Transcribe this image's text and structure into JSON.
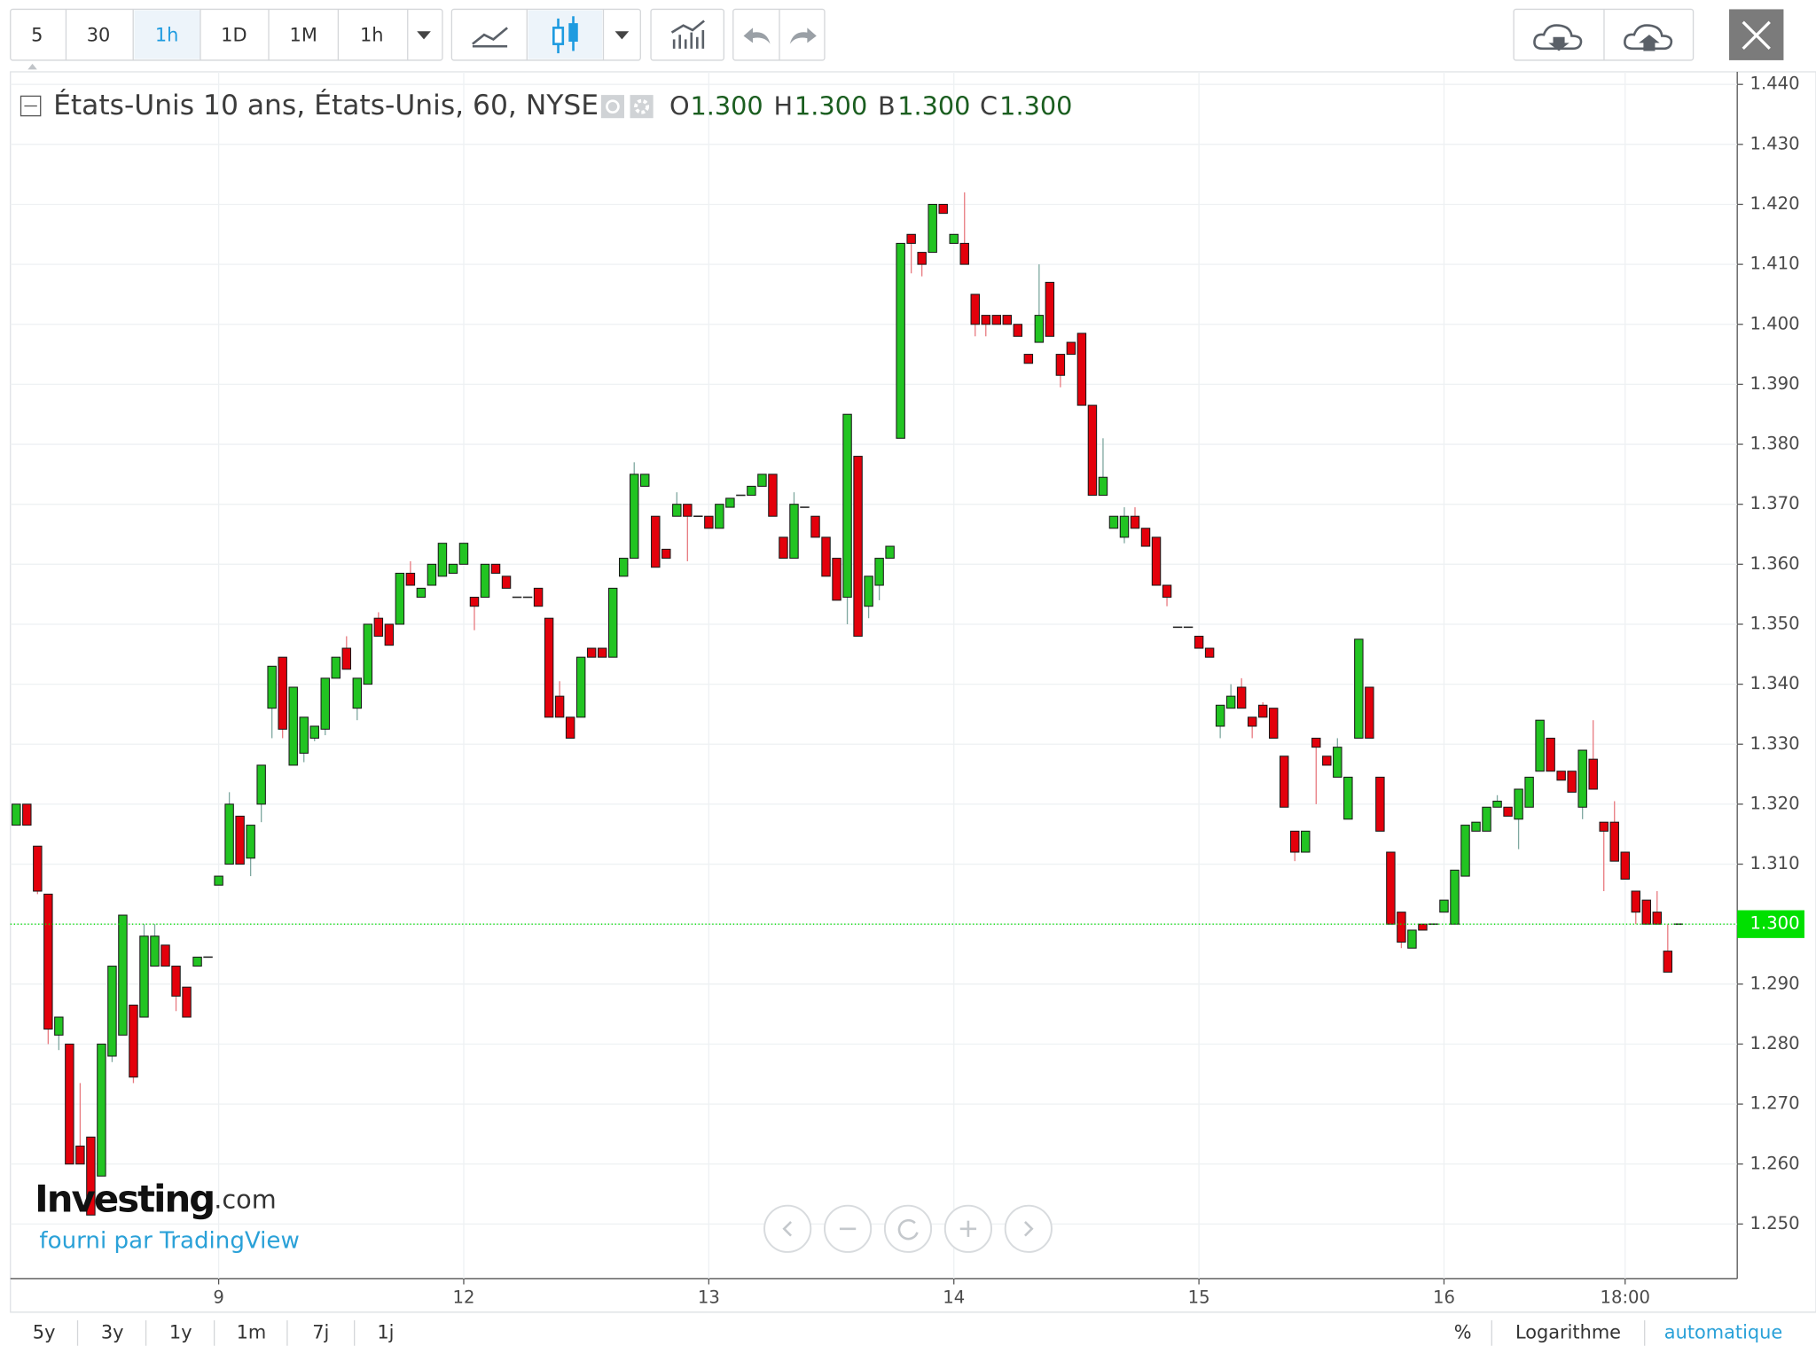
{
  "toolbar": {
    "intervals": [
      "5",
      "30",
      "1h",
      "1D",
      "1M",
      "1h"
    ]
  },
  "chart_data": {
    "type": "candlestick",
    "title": "États-Unis 10 ans, États-Unis, 60, NYSE",
    "ohlc_legend": [
      {
        "label": "O",
        "value": "1.300"
      },
      {
        "label": "H",
        "value": "1.300"
      },
      {
        "label": "B",
        "value": "1.300"
      },
      {
        "label": "C",
        "value": "1.300"
      }
    ],
    "up_color": "#22c422",
    "down_color": "#e3000b",
    "grid": true,
    "log_scale": false,
    "ylim": [
      1.2409,
      1.4421
    ],
    "yticks": [
      {
        "value": 1.25,
        "label": "1.250"
      },
      {
        "value": 1.26,
        "label": "1.260"
      },
      {
        "value": 1.27,
        "label": "1.270"
      },
      {
        "value": 1.28,
        "label": "1.280"
      },
      {
        "value": 1.29,
        "label": "1.290"
      },
      {
        "value": 1.3,
        "label": "1.300"
      },
      {
        "value": 1.31,
        "label": "1.310"
      },
      {
        "value": 1.32,
        "label": "1.320"
      },
      {
        "value": 1.33,
        "label": "1.330"
      },
      {
        "value": 1.34,
        "label": "1.340"
      },
      {
        "value": 1.35,
        "label": "1.350"
      },
      {
        "value": 1.36,
        "label": "1.360"
      },
      {
        "value": 1.37,
        "label": "1.370"
      },
      {
        "value": 1.38,
        "label": "1.380"
      },
      {
        "value": 1.39,
        "label": "1.390"
      },
      {
        "value": 1.4,
        "label": "1.400"
      },
      {
        "value": 1.41,
        "label": "1.410"
      },
      {
        "value": 1.42,
        "label": "1.420"
      },
      {
        "value": 1.43,
        "label": "1.430"
      },
      {
        "value": 1.44,
        "label": "1.440"
      }
    ],
    "last_price": {
      "value": 1.3,
      "label": "1.300",
      "color": "#00e000"
    },
    "categories": [
      null,
      null,
      null,
      null,
      null,
      null,
      null,
      null,
      null,
      null,
      null,
      null,
      null,
      null,
      null,
      null,
      null,
      null,
      null,
      "9",
      null,
      null,
      null,
      null,
      null,
      null,
      null,
      null,
      null,
      null,
      null,
      null,
      null,
      null,
      null,
      null,
      null,
      null,
      null,
      null,
      null,
      null,
      "12",
      null,
      null,
      null,
      null,
      null,
      null,
      null,
      null,
      null,
      null,
      null,
      null,
      null,
      null,
      null,
      null,
      null,
      null,
      null,
      null,
      null,
      null,
      "13",
      null,
      null,
      null,
      null,
      null,
      null,
      null,
      null,
      null,
      null,
      null,
      null,
      null,
      null,
      null,
      null,
      null,
      null,
      null,
      null,
      null,
      null,
      "14",
      null,
      null,
      null,
      null,
      null,
      null,
      null,
      null,
      null,
      null,
      null,
      null,
      null,
      null,
      null,
      null,
      null,
      null,
      null,
      null,
      null,
      null,
      "15",
      null,
      null,
      null,
      null,
      null,
      null,
      null,
      null,
      null,
      null,
      null,
      null,
      null,
      null,
      null,
      null,
      null,
      null,
      null,
      null,
      null,
      null,
      "16",
      null,
      null,
      null,
      null,
      null,
      null,
      null,
      null,
      null,
      null,
      null,
      null,
      null,
      null,
      null,
      null,
      "18:00",
      null,
      null,
      null,
      null,
      null
    ],
    "values": [
      [
        1.3165,
        1.32,
        1.3165,
        1.32
      ],
      [
        1.32,
        1.32,
        1.3165,
        1.3165
      ],
      [
        1.313,
        1.313,
        1.305,
        1.3055
      ],
      [
        1.305,
        1.305,
        1.28,
        1.2825
      ],
      [
        1.2815,
        1.2845,
        1.279,
        1.2845
      ],
      [
        1.28,
        1.28,
        1.26,
        1.26
      ],
      [
        1.263,
        1.2735,
        1.26,
        1.26
      ],
      [
        1.2645,
        1.2645,
        1.2515,
        1.2515
      ],
      [
        1.258,
        1.28,
        1.258,
        1.28
      ],
      [
        1.278,
        1.293,
        1.277,
        1.293
      ],
      [
        1.2815,
        1.3015,
        1.2815,
        1.3015
      ],
      [
        1.2865,
        1.2865,
        1.2735,
        1.2745
      ],
      [
        1.2845,
        1.3,
        1.2845,
        1.298
      ],
      [
        1.293,
        1.3,
        1.293,
        1.298
      ],
      [
        1.2965,
        1.2965,
        1.293,
        1.293
      ],
      [
        1.293,
        1.293,
        1.2855,
        1.288
      ],
      [
        1.2895,
        1.2895,
        1.2845,
        1.2845
      ],
      [
        1.293,
        1.2945,
        1.293,
        1.2945
      ],
      [
        1.2945,
        1.2945,
        1.2945,
        1.2945
      ],
      [
        1.3065,
        1.308,
        1.3065,
        1.308
      ],
      [
        1.31,
        1.322,
        1.31,
        1.32
      ],
      [
        1.318,
        1.318,
        1.31,
        1.31
      ],
      [
        1.311,
        1.3165,
        1.308,
        1.3165
      ],
      [
        1.32,
        1.3265,
        1.317,
        1.3265
      ],
      [
        1.336,
        1.343,
        1.331,
        1.343
      ],
      [
        1.3445,
        1.3445,
        1.331,
        1.3325
      ],
      [
        1.3265,
        1.3395,
        1.3265,
        1.3395
      ],
      [
        1.3285,
        1.3345,
        1.327,
        1.3345
      ],
      [
        1.331,
        1.333,
        1.3305,
        1.333
      ],
      [
        1.3325,
        1.341,
        1.3315,
        1.341
      ],
      [
        1.341,
        1.3445,
        1.341,
        1.3445
      ],
      [
        1.346,
        1.348,
        1.3425,
        1.3425
      ],
      [
        1.336,
        1.341,
        1.334,
        1.341
      ],
      [
        1.34,
        1.35,
        1.34,
        1.35
      ],
      [
        1.351,
        1.352,
        1.348,
        1.348
      ],
      [
        1.35,
        1.35,
        1.3465,
        1.3465
      ],
      [
        1.35,
        1.3585,
        1.35,
        1.3585
      ],
      [
        1.3585,
        1.3605,
        1.3565,
        1.3565
      ],
      [
        1.3545,
        1.356,
        1.3545,
        1.356
      ],
      [
        1.3565,
        1.36,
        1.3565,
        1.36
      ],
      [
        1.358,
        1.3635,
        1.358,
        1.3635
      ],
      [
        1.3585,
        1.36,
        1.3585,
        1.36
      ],
      [
        1.36,
        1.3635,
        1.36,
        1.3635
      ],
      [
        1.3545,
        1.3545,
        1.349,
        1.353
      ],
      [
        1.3545,
        1.36,
        1.3545,
        1.36
      ],
      [
        1.36,
        1.36,
        1.3585,
        1.3585
      ],
      [
        1.358,
        1.358,
        1.356,
        1.356
      ],
      [
        1.3545,
        1.3545,
        1.3545,
        1.3545
      ],
      [
        1.3545,
        1.3545,
        1.3545,
        1.3545
      ],
      [
        1.356,
        1.356,
        1.353,
        1.353
      ],
      [
        1.351,
        1.351,
        1.3345,
        1.3345
      ],
      [
        1.338,
        1.3405,
        1.3345,
        1.3345
      ],
      [
        1.3345,
        1.3345,
        1.331,
        1.331
      ],
      [
        1.3345,
        1.3445,
        1.3345,
        1.3445
      ],
      [
        1.346,
        1.346,
        1.3445,
        1.3445
      ],
      [
        1.346,
        1.346,
        1.3445,
        1.3445
      ],
      [
        1.3445,
        1.356,
        1.3445,
        1.356
      ],
      [
        1.358,
        1.361,
        1.358,
        1.361
      ],
      [
        1.361,
        1.377,
        1.361,
        1.375
      ],
      [
        1.373,
        1.375,
        1.373,
        1.375
      ],
      [
        1.368,
        1.368,
        1.3595,
        1.3595
      ],
      [
        1.3625,
        1.3625,
        1.361,
        1.361
      ],
      [
        1.368,
        1.372,
        1.368,
        1.37
      ],
      [
        1.37,
        1.37,
        1.3605,
        1.368
      ],
      [
        1.368,
        1.368,
        1.368,
        1.368
      ],
      [
        1.368,
        1.368,
        1.366,
        1.366
      ],
      [
        1.366,
        1.37,
        1.366,
        1.37
      ],
      [
        1.3695,
        1.371,
        1.3695,
        1.371
      ],
      [
        1.3715,
        1.3715,
        1.3715,
        1.3715
      ],
      [
        1.3715,
        1.373,
        1.3715,
        1.373
      ],
      [
        1.373,
        1.375,
        1.373,
        1.375
      ],
      [
        1.375,
        1.375,
        1.368,
        1.368
      ],
      [
        1.3645,
        1.3645,
        1.361,
        1.361
      ],
      [
        1.361,
        1.372,
        1.361,
        1.37
      ],
      [
        1.3695,
        1.3695,
        1.3695,
        1.3695
      ],
      [
        1.368,
        1.368,
        1.3645,
        1.3645
      ],
      [
        1.3645,
        1.3645,
        1.358,
        1.358
      ],
      [
        1.361,
        1.361,
        1.354,
        1.354
      ],
      [
        1.3545,
        1.385,
        1.35,
        1.385
      ],
      [
        1.378,
        1.378,
        1.348,
        1.348
      ],
      [
        1.353,
        1.358,
        1.351,
        1.358
      ],
      [
        1.3565,
        1.361,
        1.354,
        1.361
      ],
      [
        1.361,
        1.363,
        1.361,
        1.363
      ],
      [
        1.381,
        1.4135,
        1.381,
        1.4135
      ],
      [
        1.415,
        1.415,
        1.4085,
        1.4135
      ],
      [
        1.412,
        1.412,
        1.408,
        1.41
      ],
      [
        1.412,
        1.42,
        1.412,
        1.42
      ],
      [
        1.42,
        1.42,
        1.4185,
        1.4185
      ],
      [
        1.4135,
        1.415,
        1.4135,
        1.415
      ],
      [
        1.4135,
        1.422,
        1.41,
        1.41
      ],
      [
        1.405,
        1.405,
        1.398,
        1.4
      ],
      [
        1.4015,
        1.4015,
        1.398,
        1.4
      ],
      [
        1.4015,
        1.4015,
        1.4,
        1.4
      ],
      [
        1.4015,
        1.4015,
        1.4,
        1.4
      ],
      [
        1.4,
        1.4,
        1.398,
        1.398
      ],
      [
        1.395,
        1.395,
        1.3935,
        1.3935
      ],
      [
        1.397,
        1.41,
        1.397,
        1.4015
      ],
      [
        1.407,
        1.407,
        1.398,
        1.398
      ],
      [
        1.395,
        1.395,
        1.3895,
        1.3915
      ],
      [
        1.397,
        1.397,
        1.395,
        1.395
      ],
      [
        1.3985,
        1.3985,
        1.3865,
        1.3865
      ],
      [
        1.3865,
        1.3865,
        1.3715,
        1.3715
      ],
      [
        1.3715,
        1.381,
        1.3715,
        1.3745
      ],
      [
        1.366,
        1.368,
        1.366,
        1.368
      ],
      [
        1.3645,
        1.3695,
        1.3635,
        1.368
      ],
      [
        1.368,
        1.3695,
        1.366,
        1.366
      ],
      [
        1.366,
        1.366,
        1.363,
        1.363
      ],
      [
        1.3645,
        1.3645,
        1.3565,
        1.3565
      ],
      [
        1.3565,
        1.3565,
        1.353,
        1.3545
      ],
      [
        1.3495,
        1.3495,
        1.3495,
        1.3495
      ],
      [
        1.3495,
        1.3495,
        1.3495,
        1.3495
      ],
      [
        1.348,
        1.348,
        1.346,
        1.346
      ],
      [
        1.346,
        1.346,
        1.3445,
        1.3445
      ],
      [
        1.333,
        1.3365,
        1.331,
        1.3365
      ],
      [
        1.336,
        1.34,
        1.336,
        1.338
      ],
      [
        1.3395,
        1.341,
        1.336,
        1.336
      ],
      [
        1.3345,
        1.3345,
        1.331,
        1.333
      ],
      [
        1.3365,
        1.337,
        1.3345,
        1.3345
      ],
      [
        1.336,
        1.336,
        1.331,
        1.331
      ],
      [
        1.328,
        1.328,
        1.3195,
        1.3195
      ],
      [
        1.3155,
        1.3155,
        1.3105,
        1.312
      ],
      [
        1.312,
        1.3155,
        1.312,
        1.3155
      ],
      [
        1.331,
        1.331,
        1.32,
        1.3295
      ],
      [
        1.328,
        1.328,
        1.3265,
        1.3265
      ],
      [
        1.3245,
        1.331,
        1.3245,
        1.3295
      ],
      [
        1.3175,
        1.3245,
        1.3175,
        1.3245
      ],
      [
        1.331,
        1.3475,
        1.331,
        1.3475
      ],
      [
        1.3395,
        1.3395,
        1.331,
        1.331
      ],
      [
        1.3245,
        1.3245,
        1.3155,
        1.3155
      ],
      [
        1.312,
        1.312,
        1.3,
        1.3
      ],
      [
        1.302,
        1.302,
        1.296,
        1.297
      ],
      [
        1.296,
        1.299,
        1.296,
        1.299
      ],
      [
        1.3,
        1.3,
        1.299,
        1.299
      ],
      [
        1.3,
        1.3,
        1.3,
        1.3
      ],
      [
        1.302,
        1.304,
        1.302,
        1.304
      ],
      [
        1.3,
        1.309,
        1.3,
        1.309
      ],
      [
        1.308,
        1.3165,
        1.308,
        1.3165
      ],
      [
        1.3155,
        1.317,
        1.3155,
        1.317
      ],
      [
        1.3155,
        1.3195,
        1.3155,
        1.3195
      ],
      [
        1.3195,
        1.3215,
        1.3195,
        1.3205
      ],
      [
        1.3195,
        1.3195,
        1.318,
        1.318
      ],
      [
        1.3175,
        1.3225,
        1.3125,
        1.3225
      ],
      [
        1.3195,
        1.3245,
        1.3195,
        1.3245
      ],
      [
        1.3255,
        1.334,
        1.3255,
        1.334
      ],
      [
        1.331,
        1.331,
        1.3255,
        1.3255
      ],
      [
        1.3255,
        1.3255,
        1.324,
        1.324
      ],
      [
        1.3255,
        1.3255,
        1.322,
        1.322
      ],
      [
        1.3195,
        1.329,
        1.3175,
        1.329
      ],
      [
        1.3275,
        1.334,
        1.3225,
        1.3225
      ],
      [
        1.317,
        1.317,
        1.3055,
        1.3155
      ],
      [
        1.317,
        1.3205,
        1.3105,
        1.3105
      ],
      [
        1.312,
        1.312,
        1.3075,
        1.3075
      ],
      [
        1.3055,
        1.3055,
        1.3,
        1.302
      ],
      [
        1.304,
        1.304,
        1.3,
        1.3
      ],
      [
        1.302,
        1.3055,
        1.3,
        1.3
      ],
      [
        1.2955,
        1.3,
        1.292,
        1.292
      ],
      [
        1.3,
        1.3,
        1.3,
        1.3
      ]
    ]
  },
  "watermark": {
    "brand": "Investing",
    "suffix": ".com",
    "provider": "fourni par TradingView"
  },
  "bottom_bar": {
    "ranges": [
      "5y",
      "3y",
      "1y",
      "1m",
      "7j",
      "1j"
    ],
    "percent": "%",
    "log": "Logarithme",
    "auto": "automatique"
  }
}
